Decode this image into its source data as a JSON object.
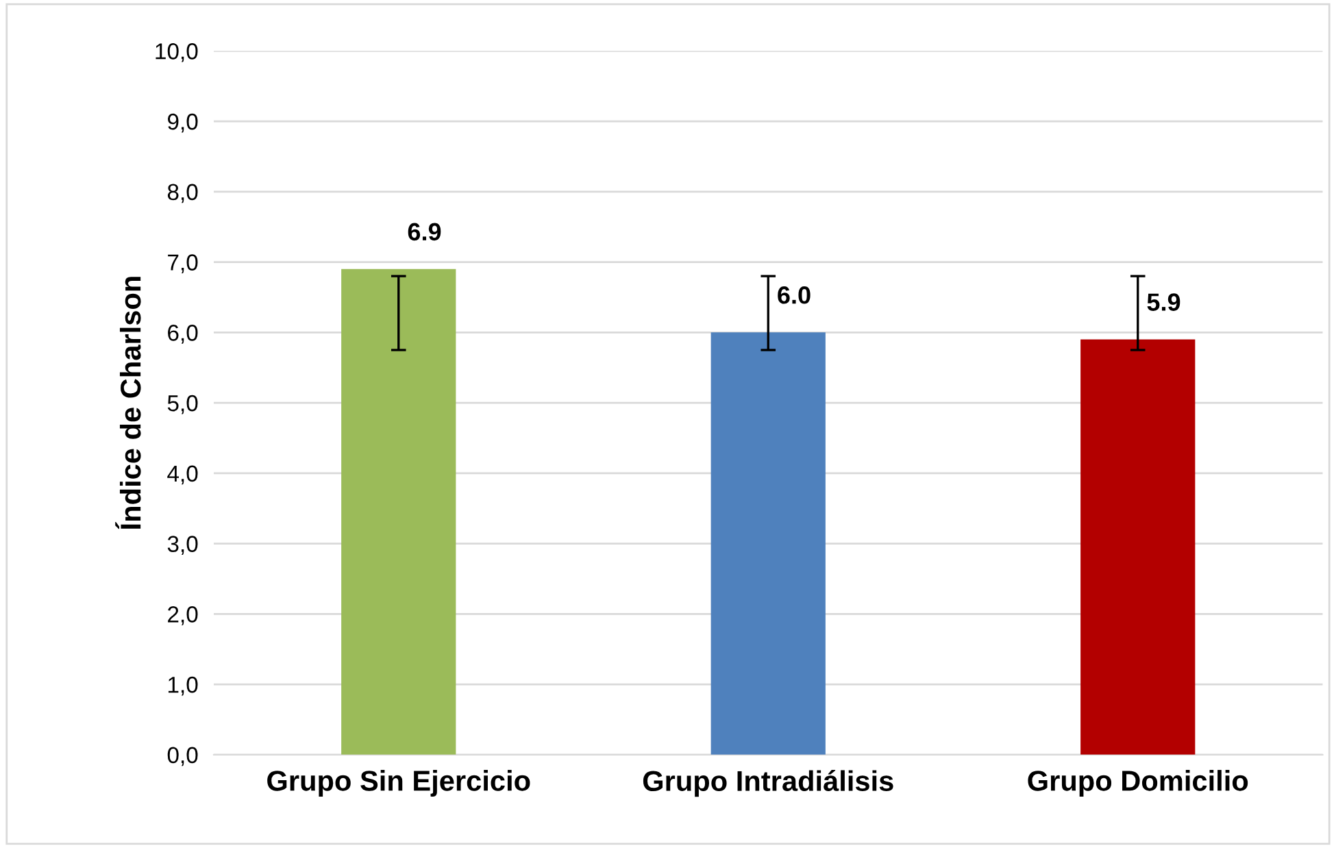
{
  "chart_data": {
    "type": "bar",
    "ylabel": "Índice de Charlson",
    "categories": [
      "Grupo Sin Ejercicio",
      "Grupo Intradiálisis",
      "Grupo Domicilio"
    ],
    "values": [
      6.9,
      6.0,
      5.9
    ],
    "colors": [
      "#9bbb59",
      "#4f81bd",
      "#b30000"
    ],
    "errors": [
      [
        5.75,
        6.8
      ],
      [
        5.75,
        6.8
      ],
      [
        5.75,
        6.8
      ]
    ],
    "value_labels": [
      "6.9",
      "6.0",
      "5.9"
    ],
    "ylim": [
      0,
      10
    ],
    "yticks": [
      {
        "value": 0,
        "label": "0,0"
      },
      {
        "value": 1,
        "label": "1,0"
      },
      {
        "value": 2,
        "label": "2,0"
      },
      {
        "value": 3,
        "label": "3,0"
      },
      {
        "value": 4,
        "label": "4,0"
      },
      {
        "value": 5,
        "label": "5,0"
      },
      {
        "value": 6,
        "label": "6,0"
      },
      {
        "value": 7,
        "label": "7,0"
      },
      {
        "value": 8,
        "label": "8,0"
      },
      {
        "value": 9,
        "label": "9,0"
      },
      {
        "value": 10,
        "label": "10,0"
      }
    ],
    "grid": "y",
    "legend": false
  }
}
